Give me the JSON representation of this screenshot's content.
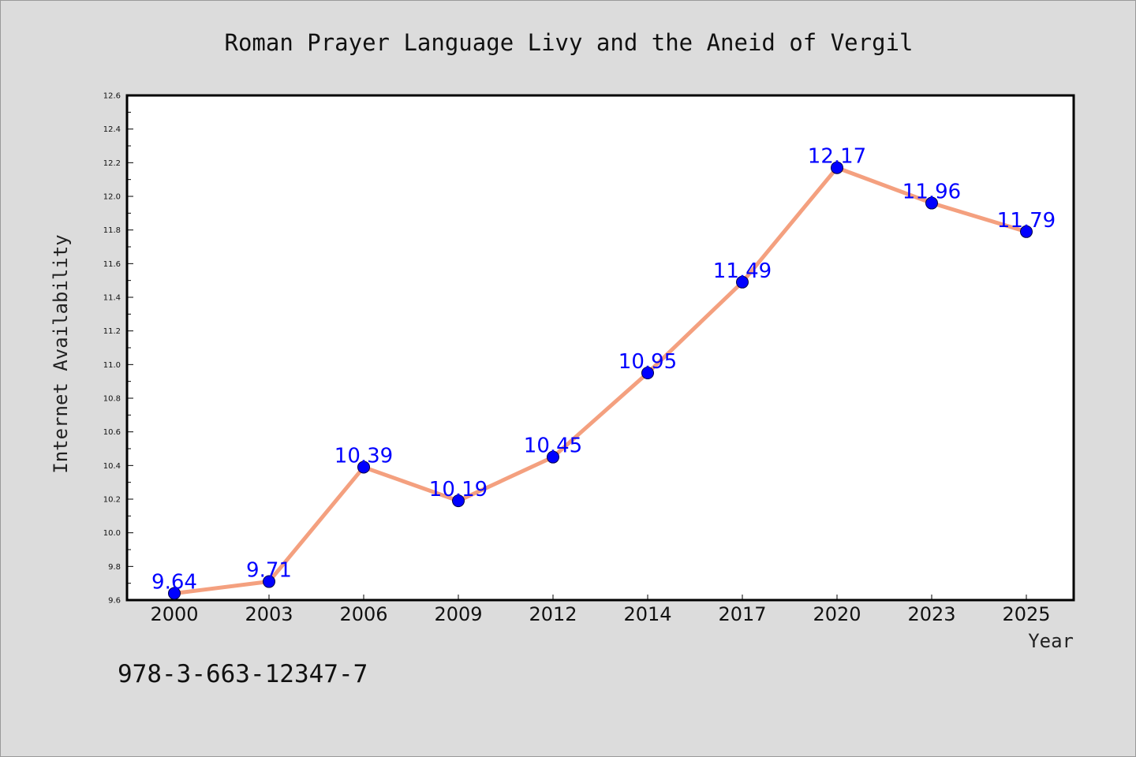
{
  "page": {
    "background_color": "#dcdcdc",
    "isbn": "978-3-663-12347-7"
  },
  "chart_data": {
    "type": "line",
    "title": "Roman Prayer Language Livy and the Aneid of Vergil",
    "xlabel": "Year",
    "ylabel": "Internet Availability",
    "categories": [
      "2000",
      "2003",
      "2006",
      "2009",
      "2012",
      "2014",
      "2017",
      "2020",
      "2023",
      "2025"
    ],
    "series": [
      {
        "values": [
          9.64,
          9.71,
          10.39,
          10.19,
          10.45,
          10.95,
          11.49,
          12.17,
          11.96,
          11.79
        ],
        "line_color": "#f4a07f",
        "marker_color": "#0000ff"
      }
    ],
    "data_labels": [
      "9.64",
      "9.71",
      "10.39",
      "10.19",
      "10.45",
      "10.95",
      "11.49",
      "12.17",
      "11.96",
      "11.79"
    ],
    "ylim": [
      9.6,
      12.6
    ],
    "yticks": [
      "9.6",
      "9.8",
      "10.0",
      "10.2",
      "10.4",
      "10.6",
      "10.8",
      "11.0",
      "11.2",
      "11.4",
      "11.6",
      "11.8",
      "12.0",
      "12.2",
      "12.4",
      "12.6"
    ],
    "yticks_values": [
      9.6,
      9.8,
      10.0,
      10.2,
      10.4,
      10.6,
      10.8,
      11.0,
      11.2,
      11.4,
      11.6,
      11.8,
      12.0,
      12.2,
      12.4,
      12.6
    ],
    "grid": false,
    "legend": "none",
    "plot_background": "#ffffff",
    "axis_color": "#000000"
  }
}
